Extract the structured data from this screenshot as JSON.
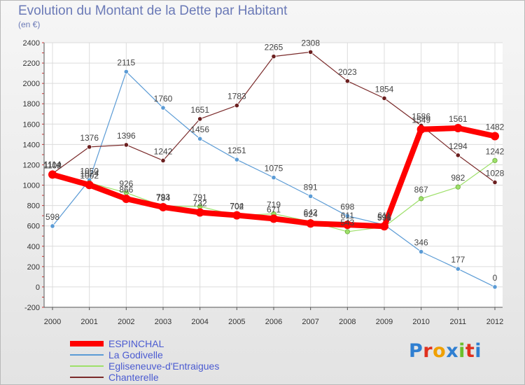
{
  "title": "Evolution du Montant de la Dette par Habitant",
  "subtitle": "(en €)",
  "logo": {
    "letters": [
      "P",
      "r",
      "o",
      "x",
      "i",
      "t",
      "i"
    ],
    "colors": [
      "#2f7fd1",
      "#e0301e",
      "#f0a000",
      "#2f7fd1",
      "#6bbf2b",
      "#e0301e",
      "#2f7fd1"
    ]
  },
  "chart_data": {
    "type": "line",
    "x": [
      "2000",
      "2001",
      "2002",
      "2003",
      "2004",
      "2005",
      "2006",
      "2007",
      "2008",
      "2009",
      "2010",
      "2011",
      "2012"
    ],
    "ylim": [
      -200,
      2400
    ],
    "yticks": [
      "-200",
      "0",
      "200",
      "400",
      "600",
      "800",
      "1000",
      "1200",
      "1400",
      "1600",
      "1800",
      "2000",
      "2200",
      "2400"
    ],
    "grid": true,
    "legend_position": "bottom-left",
    "series": [
      {
        "name": "ESPINCHAL",
        "color": "#ff0000",
        "values": [
          1104,
          1002,
          866,
          784,
          732,
          704,
          671,
          624,
          611,
          596,
          1549,
          1561,
          1482
        ],
        "labels": [
          "1104",
          "1002",
          "866",
          "784",
          "732",
          "704",
          "671",
          "624",
          "611",
          "596",
          "1549",
          "1561",
          "1482"
        ]
      },
      {
        "name": "La Godivelle",
        "color": "#5b9bd5",
        "values": [
          598,
          1050,
          2115,
          1760,
          1456,
          1251,
          1075,
          891,
          698,
          611,
          346,
          177,
          0
        ],
        "labels": [
          "598",
          "1050",
          "2115",
          "1760",
          "1456",
          "1251",
          "1075",
          "891",
          "698",
          "611",
          "346",
          "177",
          "0"
        ]
      },
      {
        "name": "Egliseneuve-d'Entraigues",
        "color": "#9ee06a",
        "values": [
          1102,
          1024,
          926,
          793,
          791,
          702,
          719,
          642,
          543,
          591,
          867,
          982,
          1242
        ],
        "labels": [
          "1102",
          "1024",
          "926",
          "793",
          "791",
          "702",
          "719",
          "642",
          "543",
          "591",
          "867",
          "982",
          "1242"
        ]
      },
      {
        "name": "Chanterelle",
        "color": "#7a2a2a",
        "values": [
          1114,
          1376,
          1396,
          1242,
          1651,
          1783,
          2265,
          2308,
          2023,
          1854,
          1586,
          1294,
          1028
        ],
        "labels": [
          "1114",
          "1376",
          "1396",
          "1242",
          "1651",
          "1783",
          "2265",
          "2308",
          "2023",
          "1854",
          "1586",
          "1294",
          "1028"
        ]
      }
    ]
  }
}
